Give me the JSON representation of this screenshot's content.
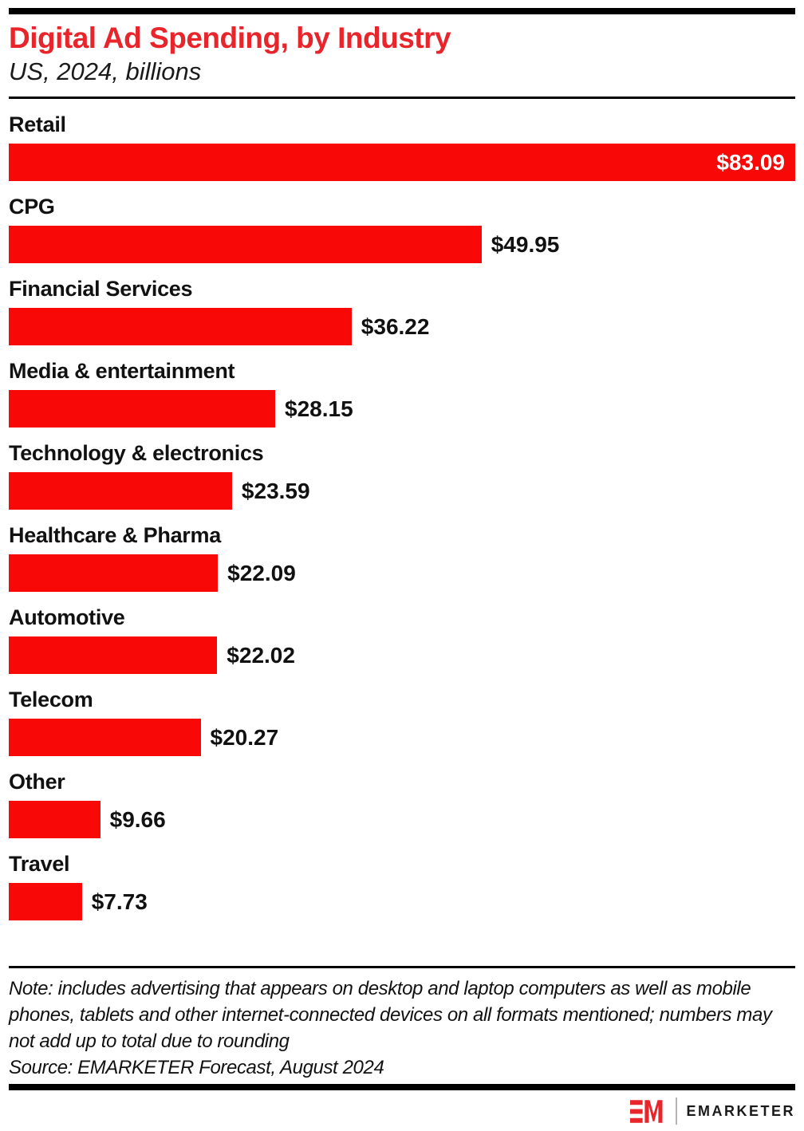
{
  "header": {
    "title": "Digital Ad Spending, by Industry",
    "subtitle": "US, 2024, billions"
  },
  "chart_data": {
    "type": "bar",
    "orientation": "horizontal",
    "title": "Digital Ad Spending, by Industry",
    "subtitle": "US, 2024, billions",
    "unit": "US$ billions",
    "categories": [
      "Retail",
      "CPG",
      "Financial Services",
      "Media & entertainment",
      "Technology & electronics",
      "Healthcare & Pharma",
      "Automotive",
      "Telecom",
      "Other",
      "Travel"
    ],
    "values": [
      83.09,
      49.95,
      36.22,
      28.15,
      23.59,
      22.09,
      22.02,
      20.27,
      9.66,
      7.73
    ],
    "value_labels": [
      "$83.09",
      "$49.95",
      "$36.22",
      "$28.15",
      "$23.59",
      "$22.09",
      "$22.02",
      "$20.27",
      "$9.66",
      "$7.73"
    ],
    "xlim": [
      0,
      83.09
    ],
    "grid": "off",
    "legend": "none",
    "bar_color": "#f90808"
  },
  "colors": {
    "brand-red": "#e8252a",
    "bar-red": "#f90808",
    "rule-black": "#000000"
  },
  "footer": {
    "note": "Note: includes advertising that appears on desktop and laptop computers as well as mobile phones, tablets and other internet-connected devices on all formats mentioned; numbers may not add up to total due to rounding",
    "source": "Source: EMARKETER Forecast, August 2024",
    "logo_text": "EMARKETER"
  }
}
